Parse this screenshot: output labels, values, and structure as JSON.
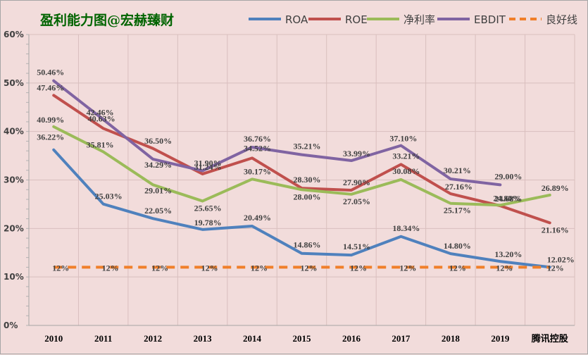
{
  "chart_data": {
    "type": "line",
    "title": "盈利能力图@宏赫臻财",
    "categories": [
      "2010",
      "2011",
      "2012",
      "2013",
      "2014",
      "2015",
      "2016",
      "2017",
      "2018",
      "2019",
      "腾讯控股"
    ],
    "ylim": [
      0,
      60
    ],
    "yticks": [
      "0%",
      "10%",
      "20%",
      "30%",
      "40%",
      "50%",
      "60%"
    ],
    "grid": true,
    "legend_position": "top-right",
    "series": [
      {
        "name": "ROA",
        "color": "#4f81bd",
        "dashed": false,
        "values": [
          36.22,
          25.03,
          22.05,
          19.78,
          20.49,
          14.86,
          14.51,
          18.34,
          14.8,
          13.2,
          12.02
        ],
        "labels": [
          "36.22%",
          "25.03%",
          "22.05%",
          "19.78%",
          "20.49%",
          "14.86%",
          "14.51%",
          "18.34%",
          "14.80%",
          "13.20%",
          "12.02%"
        ]
      },
      {
        "name": "ROE",
        "color": "#c0504d",
        "dashed": false,
        "values": [
          47.46,
          40.63,
          36.5,
          31.24,
          34.52,
          28.3,
          27.9,
          33.21,
          27.16,
          24.68,
          21.16
        ],
        "labels": [
          "47.46%",
          "40.63%",
          "36.50%",
          "31.24%",
          "34.52%",
          "28.30%",
          "27.90%",
          "33.21%",
          "27.16%",
          "24.68%",
          "21.16%"
        ]
      },
      {
        "name": "净利率",
        "color": "#9bbb59",
        "dashed": false,
        "values": [
          40.99,
          35.81,
          29.01,
          25.65,
          30.17,
          28.0,
          27.05,
          30.08,
          25.17,
          24.8,
          26.89
        ],
        "labels": [
          "40.99%",
          "35.81%",
          "29.01%",
          "25.65%",
          "30.17%",
          "28.00%",
          "27.05%",
          "30.08%",
          "25.17%",
          "24.80%",
          "26.89%"
        ]
      },
      {
        "name": "EBDIT",
        "color": "#8064a2",
        "dashed": false,
        "values": [
          50.46,
          42.46,
          34.29,
          31.9,
          36.76,
          35.21,
          33.99,
          37.1,
          30.21,
          29.0,
          null
        ],
        "labels": [
          "50.46%",
          "42.46%",
          "34.29%",
          "31.90%",
          "36.76%",
          "35.21%",
          "33.99%",
          "37.10%",
          "30.21%",
          "29.00%",
          ""
        ]
      },
      {
        "name": "良好线",
        "color": "#f07f2a",
        "dashed": true,
        "values": [
          12,
          12,
          12,
          12,
          12,
          12,
          12,
          12,
          12,
          12,
          12
        ],
        "labels": [
          "12%",
          "12%",
          "12%",
          "12%",
          "12%",
          "12%",
          "12%",
          "12%",
          "12%",
          "12%",
          "12%"
        ]
      }
    ]
  }
}
